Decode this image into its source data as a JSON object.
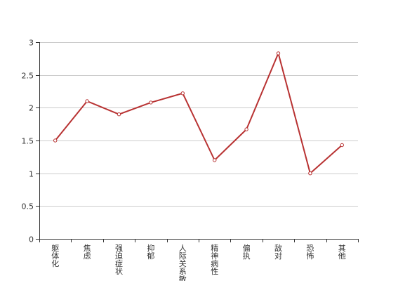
{
  "chart_data": {
    "type": "line",
    "title": "",
    "xlabel": "",
    "ylabel": "",
    "categories": [
      "躯体化",
      "焦虑",
      "强迫症状",
      "抑郁",
      "人际关系敏感",
      "精神病性",
      "偏执",
      "敌对",
      "恐怖",
      "其他"
    ],
    "series": [
      {
        "values": [
          1.5,
          2.1,
          1.9,
          2.08,
          2.22,
          1.2,
          1.67,
          2.83,
          1.0,
          1.43
        ]
      }
    ],
    "ylim": [
      0,
      3
    ],
    "yticks": [
      "0",
      "0.5",
      "1",
      "1.5",
      "2",
      "2.5",
      "3"
    ],
    "grid": true,
    "legend": "none",
    "colors": {
      "line": "#b83232",
      "marker_fill": "#ffffff",
      "grid": "#cccccc",
      "axis": "#333333",
      "text": "#333333"
    }
  }
}
